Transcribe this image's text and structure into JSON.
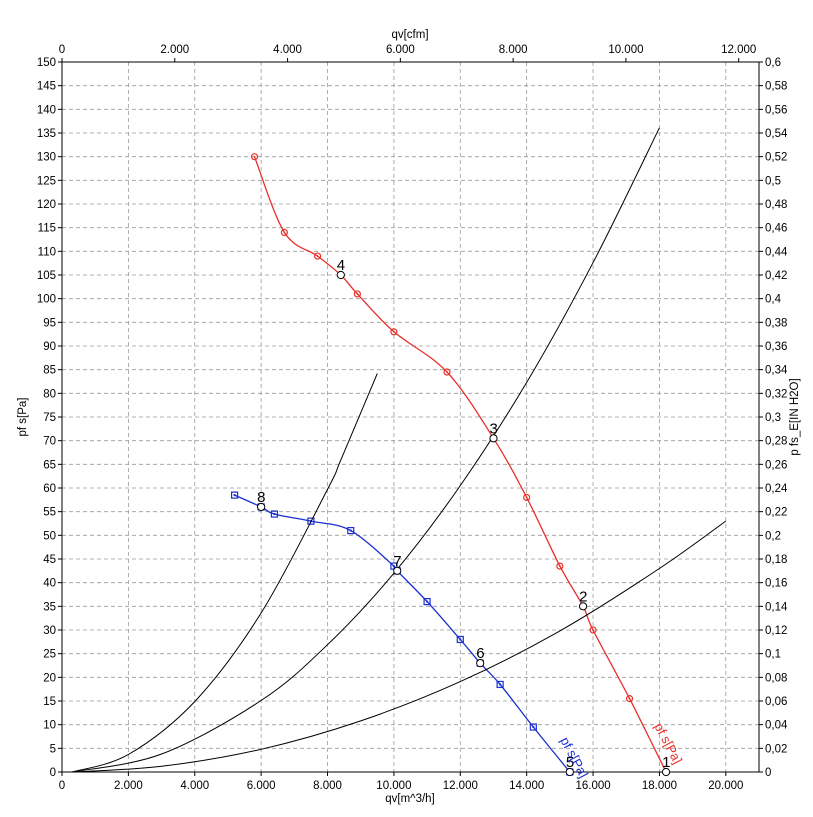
{
  "chart_data": {
    "type": "line",
    "x_axis": {
      "label": "qv[m^3/h]",
      "range": [
        0,
        21000
      ],
      "ticks": [
        0,
        2000,
        4000,
        6000,
        8000,
        10000,
        12000,
        14000,
        16000,
        18000,
        20000
      ],
      "tick_labels": [
        "0",
        "2.000",
        "4.000",
        "6.000",
        "8.000",
        "10.000",
        "12.000",
        "14.000",
        "16.000",
        "18.000",
        "20.000"
      ]
    },
    "x2_axis": {
      "label": "qv[cfm]",
      "range": [
        0,
        12360
      ],
      "ticks": [
        0,
        2000,
        4000,
        6000,
        8000,
        10000,
        12000
      ],
      "tick_labels": [
        "0",
        "2.000",
        "4.000",
        "6.000",
        "8.000",
        "10.000",
        "12.000"
      ]
    },
    "y_axis": {
      "label": "pf s[Pa]",
      "range": [
        0,
        150
      ],
      "ticks": [
        0,
        5,
        10,
        15,
        20,
        25,
        30,
        35,
        40,
        45,
        50,
        55,
        60,
        65,
        70,
        75,
        80,
        85,
        90,
        95,
        100,
        105,
        110,
        115,
        120,
        125,
        130,
        135,
        140,
        145,
        150
      ]
    },
    "y2_axis": {
      "label": "p fs_E[IN H2O]",
      "range": [
        0,
        0.6
      ],
      "ticks": [
        0,
        0.02,
        0.04,
        0.06,
        0.08,
        0.1,
        0.12,
        0.14,
        0.16,
        0.18,
        0.2,
        0.22,
        0.24,
        0.26,
        0.28,
        0.3,
        0.32,
        0.34,
        0.36,
        0.38,
        0.4,
        0.42,
        0.44,
        0.46,
        0.48,
        0.5,
        0.52,
        0.54,
        0.56,
        0.58,
        0.6
      ],
      "tick_labels": [
        "0",
        "0,02",
        "0,04",
        "0,06",
        "0,08",
        "0,1",
        "0,12",
        "0,14",
        "0,16",
        "0,18",
        "0,2",
        "0,22",
        "0,24",
        "0,26",
        "0,28",
        "0,3",
        "0,32",
        "0,34",
        "0,36",
        "0,38",
        "0,4",
        "0,42",
        "0,44",
        "0,46",
        "0,48",
        "0,5",
        "0,52",
        "0,54",
        "0,56",
        "0,58",
        "0,6"
      ]
    },
    "grid": true,
    "series": [
      {
        "name": "pf s[Pa]",
        "color": "#e8302a",
        "marker": "circle",
        "points": [
          [
            5800,
            130
          ],
          [
            6700,
            114
          ],
          [
            7700,
            109
          ],
          [
            8400,
            105
          ],
          [
            8900,
            101
          ],
          [
            10000,
            93
          ],
          [
            11600,
            84.5
          ],
          [
            13000,
            70.5
          ],
          [
            14000,
            58
          ],
          [
            15000,
            43.5
          ],
          [
            15700,
            35
          ],
          [
            16000,
            30
          ],
          [
            17100,
            15.5
          ],
          [
            18200,
            0
          ]
        ]
      },
      {
        "name": "pf s[Pa]",
        "color": "#1a2fd0",
        "marker": "square",
        "points": [
          [
            5200,
            58.5
          ],
          [
            6000,
            56
          ],
          [
            6400,
            54.5
          ],
          [
            7500,
            53
          ],
          [
            8700,
            51
          ],
          [
            10000,
            43.5
          ],
          [
            10100,
            42.5
          ],
          [
            11000,
            36
          ],
          [
            12000,
            28
          ],
          [
            12600,
            23
          ],
          [
            13200,
            18.5
          ],
          [
            14200,
            9.5
          ],
          [
            15300,
            0
          ]
        ]
      },
      {
        "name": "",
        "color": "#000000",
        "marker": "none",
        "points": [
          [
            300,
            0
          ],
          [
            2000,
            3.7
          ],
          [
            4000,
            14.9
          ],
          [
            6000,
            33.6
          ],
          [
            8000,
            59.7
          ],
          [
            8400,
            65.9
          ],
          [
            9500,
            84.2
          ]
        ]
      },
      {
        "name": "",
        "color": "#000000",
        "marker": "none",
        "points": [
          [
            300,
            0
          ],
          [
            3000,
            3.8
          ],
          [
            6000,
            15.1
          ],
          [
            8000,
            26.9
          ],
          [
            10000,
            42
          ],
          [
            12000,
            60.5
          ],
          [
            14000,
            82.3
          ],
          [
            16000,
            107.6
          ],
          [
            18000,
            136.1
          ]
        ]
      },
      {
        "name": "",
        "color": "#000000",
        "marker": "none",
        "points": [
          [
            300,
            0
          ],
          [
            3000,
            1.2
          ],
          [
            6000,
            4.8
          ],
          [
            9000,
            10.8
          ],
          [
            12000,
            19.1
          ],
          [
            15000,
            29.8
          ],
          [
            18000,
            43
          ],
          [
            20000,
            53
          ]
        ]
      }
    ],
    "operating_points": [
      {
        "label": "1",
        "x": 18200,
        "y": 0
      },
      {
        "label": "2",
        "x": 15700,
        "y": 35
      },
      {
        "label": "3",
        "x": 13000,
        "y": 70.5
      },
      {
        "label": "4",
        "x": 8400,
        "y": 105
      },
      {
        "label": "5",
        "x": 15300,
        "y": 0
      },
      {
        "label": "6",
        "x": 12600,
        "y": 23
      },
      {
        "label": "7",
        "x": 10100,
        "y": 42.5
      },
      {
        "label": "8",
        "x": 6000,
        "y": 56
      }
    ]
  }
}
